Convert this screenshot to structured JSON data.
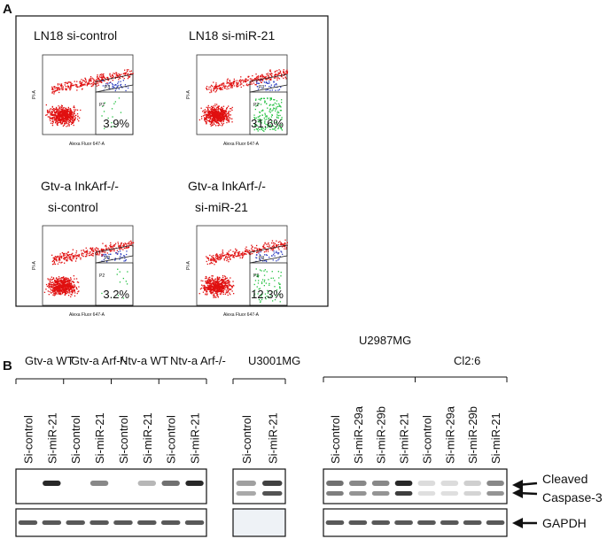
{
  "panel_a": {
    "label": "A",
    "plots": [
      {
        "title": [
          "LN18 si-control"
        ],
        "percent": "3.9%",
        "gate_upper": "P3",
        "gate_lower": "P2",
        "x_axis": "Alexa Fluor 647-A",
        "y_axis": "PI-A"
      },
      {
        "title": [
          "LN18 si-miR-21"
        ],
        "percent": "31.6%",
        "gate_upper": "P3",
        "gate_lower": "P2",
        "x_axis": "Alexa Fluor 647-A",
        "y_axis": "PI-A"
      },
      {
        "title": [
          "Gtv-a InkArf-/-",
          "si-control"
        ],
        "percent": "3.2%",
        "gate_upper": "P3",
        "gate_lower": "P2",
        "x_axis": "Alexa Fluor 647-A",
        "y_axis": "PI-A"
      },
      {
        "title": [
          "Gtv-a InkArf-/-",
          "si-miR-21"
        ],
        "percent": "12.3%",
        "gate_upper": "P3",
        "gate_lower": "P2",
        "x_axis": "Alexa Fluor 647-A",
        "y_axis": "PI-A"
      }
    ]
  },
  "panel_b": {
    "label": "B",
    "blots": [
      {
        "groups": [
          "Gtv-a WT",
          "Gtv-a Arf-/-",
          "Ntv-a WT",
          "Ntv-a Arf-/-"
        ],
        "lanes": [
          "Si-control",
          "Si-miR-21",
          "Si-control",
          "Si-miR-21",
          "Si-control",
          "Si-miR-21",
          "Si-control",
          "Si-miR-21"
        ]
      },
      {
        "groups": [
          "U3001MG"
        ],
        "lanes": [
          "Si-control",
          "Si-miR-21"
        ]
      },
      {
        "groups": [
          "U2987MG",
          "Cl2:6"
        ],
        "lanes": [
          "Si-control",
          "Si-miR-29a",
          "Si-miR-29b",
          "Si-miR-21",
          "Si-control",
          "Si-miR-29a",
          "Si-miR-29b",
          "Si-miR-21"
        ]
      }
    ],
    "markers": [
      "Cleaved",
      "Caspase-3",
      "GAPDH"
    ]
  }
}
